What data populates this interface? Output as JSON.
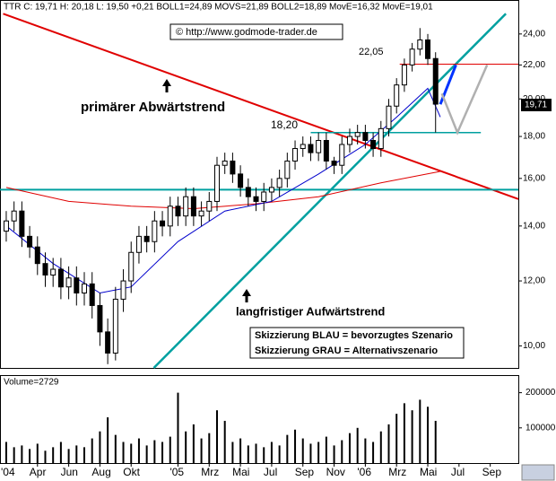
{
  "chart_data": {
    "type": "candlestick",
    "header": "TTR C: 19,71 H: 20,18 L: 19,50 +0,21 BOLL1=24,89 MOVS=21,89 BOLL2=18,89 MovE=16,32 MovE=19,01",
    "annotations": [
      "© http://www.godmode-trader.de",
      "22,05",
      "18,20",
      "primärer Abwärtstrend",
      "langfristiger Aufwärtstrend",
      "Skizzierung BLAU = bevorzugtes Szenario",
      "Skizzierung GRAU = Alternativszenario"
    ],
    "volume_label": "Volume=2729",
    "last_price_label": "19,71",
    "log_scale": true,
    "ylim": [
      9.4,
      26.4
    ],
    "yticks": [
      {
        "value": 10,
        "label": "10,00"
      },
      {
        "value": 12,
        "label": "12,00"
      },
      {
        "value": 14,
        "label": "14,00"
      },
      {
        "value": 16,
        "label": "16,00"
      },
      {
        "value": 18,
        "label": "18,00"
      },
      {
        "value": 20,
        "label": "20,00"
      },
      {
        "value": 22,
        "label": "22,00"
      },
      {
        "value": 24,
        "label": "24,00"
      }
    ],
    "xlim": [
      0.6,
      33.8
    ],
    "xticks": [
      {
        "value": 0,
        "label": "'04"
      },
      {
        "value": 3,
        "label": "Apr"
      },
      {
        "value": 5,
        "label": "Jun"
      },
      {
        "value": 7,
        "label": "Aug"
      },
      {
        "value": 9,
        "label": "Okt"
      },
      {
        "value": 12,
        "label": "'05"
      },
      {
        "value": 14,
        "label": "Mrz"
      },
      {
        "value": 16,
        "label": "Mai"
      },
      {
        "value": 18,
        "label": "Jul"
      },
      {
        "value": 20,
        "label": "Sep"
      },
      {
        "value": 22,
        "label": "Nov"
      },
      {
        "value": 24,
        "label": "'06"
      },
      {
        "value": 26,
        "label": "Mrz"
      },
      {
        "value": 28,
        "label": "Mai"
      },
      {
        "value": 30,
        "label": "Jul"
      },
      {
        "value": 32,
        "label": "Sep"
      }
    ],
    "x": [
      1,
      1.5,
      2,
      2.5,
      3,
      3.5,
      4,
      4.5,
      5,
      5.5,
      6,
      6.5,
      7,
      7.5,
      8,
      8.5,
      9,
      9.5,
      10,
      10.5,
      11,
      11.5,
      12,
      12.5,
      13,
      13.5,
      14,
      14.5,
      15,
      15.5,
      16,
      16.5,
      17,
      17.5,
      18,
      18.5,
      19,
      19.5,
      20,
      20.5,
      21,
      21.5,
      22,
      22.5,
      23,
      23.5,
      24,
      24.5,
      25,
      25.5,
      26,
      26.5,
      27,
      27.5,
      28,
      28.5
    ],
    "open": [
      13.8,
      14.2,
      14.6,
      13.6,
      13.2,
      12.6,
      12.2,
      12.4,
      11.8,
      12.1,
      11.6,
      11.9,
      11.2,
      10.4,
      9.8,
      11.4,
      12.0,
      13.0,
      13.6,
      13.4,
      14.2,
      14.0,
      14.8,
      14.4,
      15.2,
      14.4,
      14.6,
      15.0,
      16.6,
      16.8,
      16.2,
      15.6,
      15.2,
      15.0,
      15.4,
      15.6,
      16.0,
      16.8,
      17.4,
      17.6,
      17.2,
      17.8,
      16.8,
      16.6,
      17.6,
      18.0,
      18.2,
      17.8,
      17.4,
      18.4,
      19.6,
      20.8,
      22.0,
      23.0,
      23.6,
      22.4
    ],
    "high": [
      14.6,
      15.0,
      15.0,
      14.0,
      13.6,
      13.0,
      12.8,
      12.8,
      12.5,
      12.5,
      12.3,
      12.3,
      11.6,
      10.8,
      11.8,
      12.4,
      13.4,
      14.0,
      14.0,
      14.6,
      14.6,
      15.2,
      15.2,
      15.6,
      15.6,
      15.0,
      15.4,
      17.0,
      17.2,
      17.2,
      16.6,
      16.0,
      15.6,
      15.8,
      16.0,
      16.4,
      17.2,
      17.8,
      18.0,
      18.0,
      18.2,
      18.2,
      17.0,
      18.0,
      18.4,
      18.6,
      18.6,
      18.2,
      18.8,
      20.0,
      21.2,
      22.4,
      23.4,
      24.4,
      24.0,
      22.8
    ],
    "low": [
      13.4,
      13.8,
      13.2,
      12.8,
      12.2,
      11.8,
      11.8,
      11.4,
      11.4,
      11.2,
      11.2,
      10.8,
      10.0,
      9.5,
      9.6,
      11.0,
      11.6,
      12.6,
      13.0,
      13.0,
      13.6,
      13.6,
      14.0,
      14.0,
      14.0,
      14.0,
      14.2,
      14.6,
      16.2,
      15.8,
      15.2,
      14.8,
      14.6,
      14.6,
      15.0,
      15.2,
      15.6,
      16.4,
      17.0,
      16.8,
      16.8,
      16.4,
      16.2,
      16.2,
      17.2,
      17.6,
      17.4,
      17.0,
      17.0,
      18.0,
      19.2,
      20.4,
      21.6,
      22.6,
      22.0,
      18.2
    ],
    "close": [
      14.2,
      14.6,
      13.6,
      13.2,
      12.6,
      12.2,
      12.4,
      11.8,
      12.1,
      11.6,
      11.9,
      11.2,
      10.4,
      9.8,
      11.4,
      12.0,
      13.0,
      13.6,
      13.4,
      14.2,
      14.0,
      14.8,
      14.4,
      15.2,
      14.4,
      14.6,
      15.0,
      16.6,
      16.8,
      16.2,
      15.6,
      15.2,
      15.0,
      15.4,
      15.6,
      16.0,
      16.8,
      17.4,
      17.6,
      17.2,
      17.8,
      16.8,
      16.6,
      17.6,
      18.0,
      18.2,
      17.8,
      17.4,
      18.4,
      19.6,
      20.8,
      22.0,
      23.0,
      23.6,
      22.4,
      19.71
    ],
    "volume": [
      60000,
      45000,
      50000,
      40000,
      55000,
      35000,
      45000,
      60000,
      40000,
      50000,
      45000,
      70000,
      90000,
      130000,
      80000,
      60000,
      55000,
      70000,
      50000,
      65000,
      60000,
      75000,
      200000,
      90000,
      110000,
      70000,
      85000,
      150000,
      120000,
      60000,
      70000,
      50000,
      55000,
      45000,
      60000,
      50000,
      80000,
      95000,
      70000,
      55000,
      60000,
      75000,
      50000,
      65000,
      85000,
      100000,
      70000,
      60000,
      90000,
      110000,
      140000,
      170000,
      150000,
      180000,
      160000,
      120000
    ],
    "volume_ylim": [
      0,
      250000
    ],
    "volume_yticks": [
      100000,
      200000
    ],
    "lines": [
      {
        "color": "#e00000",
        "width": 2,
        "x": [
          0.8,
          33.8
        ],
        "y": [
          25.4,
          15.1
        ]
      },
      {
        "color": "#00a0a0",
        "width": 2.5,
        "x": [
          10.45,
          33.0
        ],
        "y": [
          9.4,
          25.4
        ]
      },
      {
        "color": "#00a0a0",
        "width": 2,
        "x": [
          0.6,
          33.8
        ],
        "y": [
          15.5,
          15.5
        ]
      },
      {
        "color": "#00a0a0",
        "width": 1.5,
        "x": [
          20.5,
          31.4
        ],
        "y": [
          18.2,
          18.2
        ]
      },
      {
        "color": "#e00000",
        "width": 1,
        "x": [
          26.2,
          33.8
        ],
        "y": [
          22.05,
          22.05
        ]
      },
      {
        "color": "#e00000",
        "width": 1,
        "x": [
          1,
          5,
          9,
          13,
          17,
          21,
          25,
          28.8
        ],
        "y": [
          15.6,
          15.0,
          14.8,
          14.7,
          14.9,
          15.2,
          15.8,
          16.32
        ]
      },
      {
        "color": "#0000cc",
        "width": 1,
        "x": [
          1,
          4,
          7,
          9,
          12,
          15,
          18,
          21,
          24,
          26,
          28,
          28.8
        ],
        "y": [
          14.0,
          12.6,
          11.6,
          11.8,
          13.4,
          14.6,
          15.0,
          16.2,
          17.6,
          19.0,
          20.6,
          19.01
        ]
      },
      {
        "color": "#0033ff",
        "width": 3,
        "x": [
          28.8,
          29.8
        ],
        "y": [
          19.7,
          22.0
        ]
      },
      {
        "color": "#b0b0b0",
        "width": 2.5,
        "x": [
          28.9,
          29.9,
          31.8
        ],
        "y": [
          20.3,
          18.2,
          22.0
        ]
      }
    ]
  }
}
